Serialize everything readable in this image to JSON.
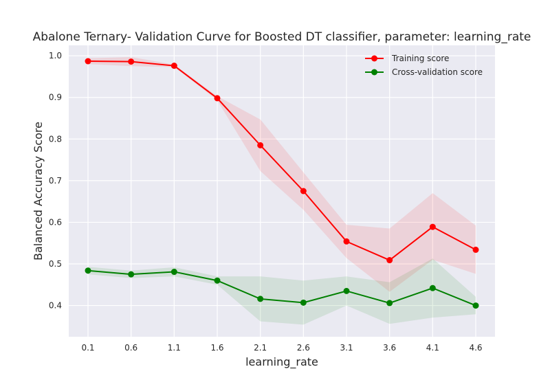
{
  "chart_data": {
    "type": "line",
    "title": "Abalone Ternary- Validation Curve for Boosted DT classifier, parameter: learning_rate",
    "xlabel": "learning_rate",
    "ylabel": "Balanced Accuracy Score",
    "x": [
      0.1,
      0.6,
      1.1,
      1.6,
      2.1,
      2.6,
      3.1,
      3.6,
      4.1,
      4.6
    ],
    "x_tick_labels": [
      "0.1",
      "0.6",
      "1.1",
      "1.6",
      "2.1",
      "2.6",
      "3.1",
      "3.6",
      "4.1",
      "4.6"
    ],
    "y_ticks": [
      0.4,
      0.5,
      0.6,
      0.7,
      0.8,
      0.9,
      1.0
    ],
    "y_tick_labels": [
      "0.4",
      "0.5",
      "0.6",
      "0.7",
      "0.8",
      "0.9",
      "1.0"
    ],
    "ylim": [
      0.325,
      1.025
    ],
    "grid": true,
    "legend_position": "top-right",
    "series": [
      {
        "name": "Training score",
        "color": "#ff0000",
        "values": [
          0.987,
          0.986,
          0.976,
          0.898,
          0.785,
          0.675,
          0.554,
          0.509,
          0.589,
          0.534
        ],
        "band_lower": [
          0.98,
          0.975,
          0.973,
          0.893,
          0.723,
          0.63,
          0.514,
          0.433,
          0.51,
          0.476
        ],
        "band_upper": [
          0.994,
          0.997,
          0.979,
          0.903,
          0.847,
          0.72,
          0.594,
          0.585,
          0.67,
          0.592
        ]
      },
      {
        "name": "Cross-validation score",
        "color": "#008000",
        "values": [
          0.484,
          0.475,
          0.481,
          0.46,
          0.416,
          0.407,
          0.435,
          0.406,
          0.442,
          0.4
        ],
        "band_lower": [
          0.475,
          0.466,
          0.47,
          0.45,
          0.362,
          0.354,
          0.4,
          0.356,
          0.371,
          0.379
        ],
        "band_upper": [
          0.493,
          0.484,
          0.492,
          0.47,
          0.47,
          0.46,
          0.47,
          0.456,
          0.513,
          0.421
        ]
      }
    ]
  }
}
